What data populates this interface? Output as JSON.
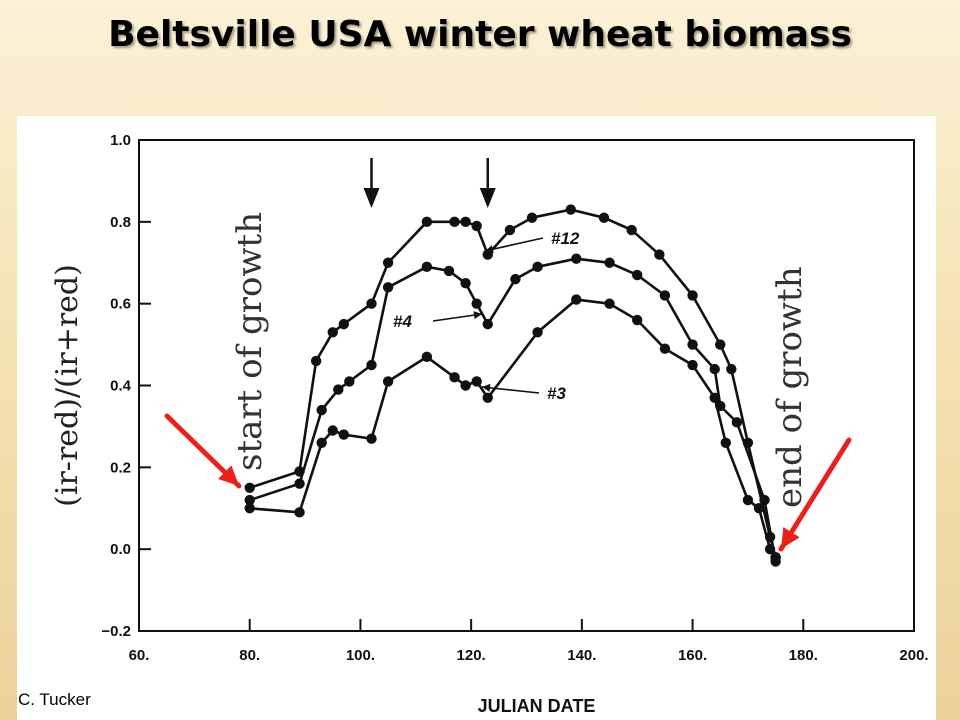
{
  "slide": {
    "title": "Beltsville USA winter wheat biomass",
    "credit": "C. Tucker"
  },
  "colors": {
    "background": "#f5e2b4",
    "plot_ink": "#111111",
    "highlight_arrow": "#e8221a"
  },
  "chart_data": {
    "type": "line",
    "title": "",
    "xlabel": "JULIAN DATE",
    "ylabel": "(ir-red)/(ir+red)",
    "xlim": [
      60,
      200
    ],
    "ylim": [
      -0.2,
      1.0
    ],
    "x_ticks": [
      60,
      80,
      100,
      120,
      140,
      160,
      180,
      200
    ],
    "x_tick_labels": [
      "60.",
      "80.",
      "100.",
      "120.",
      "140.",
      "160.",
      "180.",
      "200."
    ],
    "y_ticks": [
      -0.2,
      0.0,
      0.2,
      0.4,
      0.6,
      0.8,
      1.0
    ],
    "y_tick_labels": [
      "−0.2",
      "0.0",
      "0.2",
      "0.4",
      "0.6",
      "0.8",
      "1.0"
    ],
    "grid": false,
    "legend": "none",
    "series": [
      {
        "name": "#12",
        "x": [
          80,
          89,
          92,
          95,
          97,
          102,
          105,
          112,
          117,
          119,
          121,
          123,
          127,
          131,
          138,
          144,
          149,
          154,
          160,
          165,
          167,
          170,
          174,
          175
        ],
        "y": [
          0.15,
          0.19,
          0.46,
          0.53,
          0.55,
          0.6,
          0.7,
          0.8,
          0.8,
          0.8,
          0.79,
          0.72,
          0.78,
          0.81,
          0.83,
          0.81,
          0.78,
          0.72,
          0.62,
          0.5,
          0.44,
          0.26,
          0.03,
          -0.02
        ]
      },
      {
        "name": "#4",
        "x": [
          80,
          89,
          93,
          96,
          98,
          102,
          105,
          112,
          116,
          119,
          121,
          123,
          128,
          132,
          139,
          145,
          150,
          155,
          160,
          164,
          165,
          168,
          173,
          175
        ],
        "y": [
          0.12,
          0.16,
          0.34,
          0.39,
          0.41,
          0.45,
          0.64,
          0.69,
          0.68,
          0.65,
          0.6,
          0.55,
          0.66,
          0.69,
          0.71,
          0.7,
          0.67,
          0.62,
          0.5,
          0.44,
          0.35,
          0.31,
          0.12,
          -0.03
        ]
      },
      {
        "name": "#3",
        "x": [
          80,
          89,
          93,
          95,
          97,
          102,
          105,
          112,
          117,
          119,
          121,
          123,
          132,
          139,
          145,
          150,
          155,
          160,
          164,
          166,
          170,
          172,
          174,
          175
        ],
        "y": [
          0.1,
          0.09,
          0.26,
          0.29,
          0.28,
          0.27,
          0.41,
          0.47,
          0.42,
          0.4,
          0.41,
          0.37,
          0.53,
          0.61,
          0.6,
          0.56,
          0.49,
          0.45,
          0.37,
          0.26,
          0.12,
          0.1,
          0.0,
          -0.02
        ]
      }
    ],
    "annotations": {
      "series_labels": [
        "#12",
        "#4",
        "#3"
      ],
      "start_text": "start of growth",
      "end_text": "end of growth",
      "event_marker_days": [
        102,
        123
      ]
    }
  }
}
